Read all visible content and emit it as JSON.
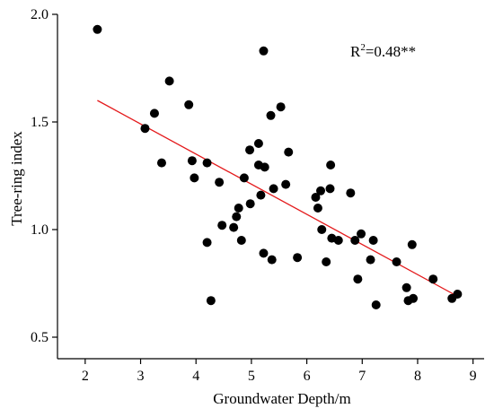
{
  "chart_data": {
    "type": "scatter",
    "xlabel": "Groundwater Depth/m",
    "ylabel": "Tree-ring index",
    "xlim": [
      1.5,
      9.2
    ],
    "ylim": [
      0.4,
      2.0
    ],
    "x_ticks": [
      2,
      3,
      4,
      5,
      6,
      7,
      8,
      9
    ],
    "y_ticks": [
      0.5,
      1.0,
      1.5,
      2.0
    ],
    "x_tick_labels": [
      "2",
      "3",
      "4",
      "5",
      "6",
      "7",
      "8",
      "9"
    ],
    "y_tick_labels": [
      "0.5",
      "1.0",
      "1.5",
      "2.0"
    ],
    "annotation": {
      "base": "R",
      "sup": "2",
      "rest": "=0.48**"
    },
    "grid": false,
    "points": [
      [
        2.22,
        1.93
      ],
      [
        3.08,
        1.47
      ],
      [
        3.25,
        1.54
      ],
      [
        3.38,
        1.31
      ],
      [
        3.52,
        1.69
      ],
      [
        3.87,
        1.58
      ],
      [
        3.93,
        1.32
      ],
      [
        3.97,
        1.24
      ],
      [
        4.2,
        1.31
      ],
      [
        4.2,
        0.94
      ],
      [
        4.27,
        0.67
      ],
      [
        4.42,
        1.22
      ],
      [
        4.47,
        1.02
      ],
      [
        4.68,
        1.01
      ],
      [
        4.73,
        1.06
      ],
      [
        4.77,
        1.1
      ],
      [
        4.82,
        0.95
      ],
      [
        4.87,
        1.24
      ],
      [
        4.97,
        1.37
      ],
      [
        4.98,
        1.12
      ],
      [
        5.13,
        1.4
      ],
      [
        5.13,
        1.3
      ],
      [
        5.17,
        1.16
      ],
      [
        5.22,
        1.83
      ],
      [
        5.22,
        0.89
      ],
      [
        5.24,
        1.29
      ],
      [
        5.35,
        1.53
      ],
      [
        5.37,
        0.86
      ],
      [
        5.4,
        1.19
      ],
      [
        5.53,
        1.57
      ],
      [
        5.62,
        1.21
      ],
      [
        5.67,
        1.36
      ],
      [
        5.83,
        0.87
      ],
      [
        6.16,
        1.15
      ],
      [
        6.2,
        1.1
      ],
      [
        6.25,
        1.18
      ],
      [
        6.27,
        1.0
      ],
      [
        6.35,
        0.85
      ],
      [
        6.42,
        1.19
      ],
      [
        6.43,
        1.3
      ],
      [
        6.45,
        0.96
      ],
      [
        6.57,
        0.95
      ],
      [
        6.79,
        1.17
      ],
      [
        6.87,
        0.95
      ],
      [
        6.92,
        0.77
      ],
      [
        6.98,
        0.98
      ],
      [
        7.15,
        0.86
      ],
      [
        7.2,
        0.95
      ],
      [
        7.25,
        0.65
      ],
      [
        7.62,
        0.85
      ],
      [
        7.8,
        0.73
      ],
      [
        7.83,
        0.67
      ],
      [
        7.9,
        0.93
      ],
      [
        7.92,
        0.68
      ],
      [
        8.28,
        0.77
      ],
      [
        8.62,
        0.68
      ],
      [
        8.72,
        0.7
      ]
    ],
    "fit_line": {
      "x": [
        2.22,
        8.72
      ],
      "y": [
        1.6,
        0.69
      ]
    }
  }
}
